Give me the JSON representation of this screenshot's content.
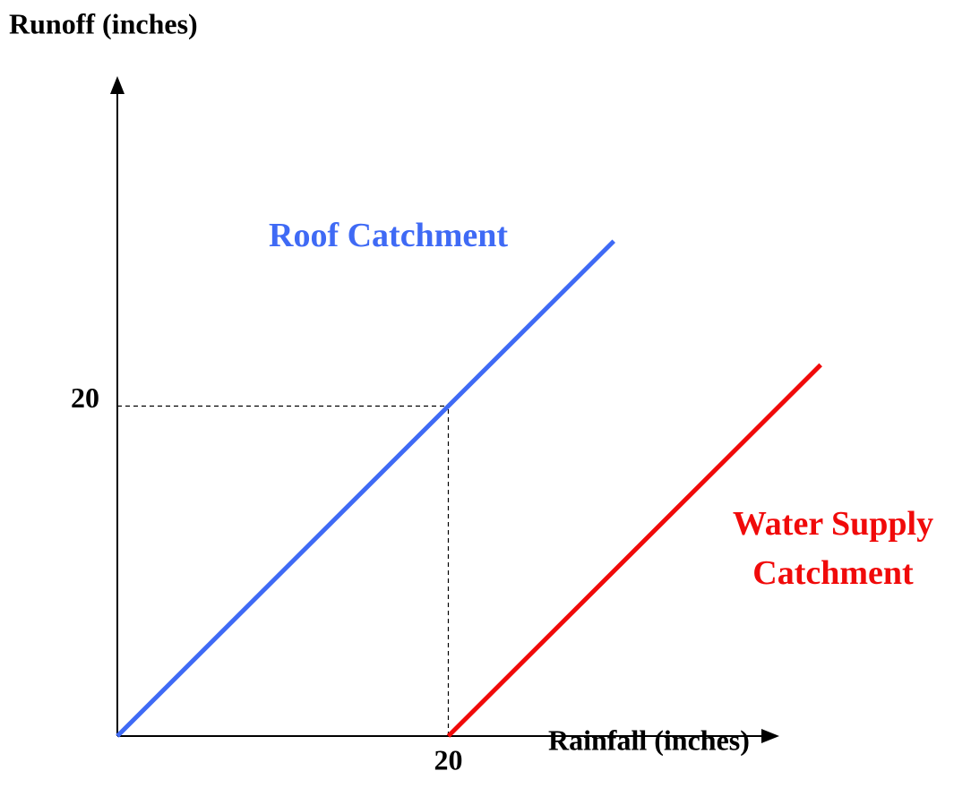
{
  "chart_data": {
    "type": "line",
    "xlabel": "Rainfall (inches)",
    "ylabel": "Runoff (inches)",
    "series": [
      {
        "name": "Roof Catchment",
        "color": "#3f6af5",
        "x": [
          0,
          30
        ],
        "values": [
          0,
          30
        ]
      },
      {
        "name": "Water Supply Catchment",
        "color": "#f00a0a",
        "x": [
          20,
          42.5
        ],
        "values": [
          0,
          22.5
        ]
      }
    ],
    "xlim": [
      0,
      40
    ],
    "ylim": [
      0,
      40
    ],
    "xticks": [
      20
    ],
    "yticks": [
      20
    ],
    "grid": "dashed"
  }
}
